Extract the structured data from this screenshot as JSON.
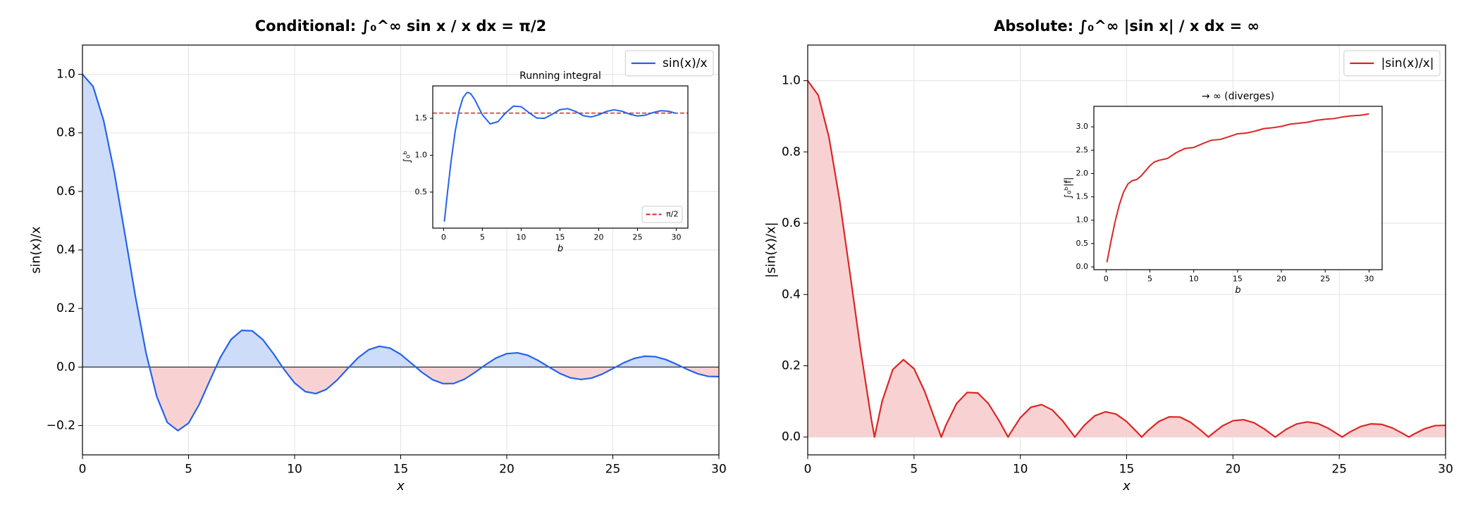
{
  "chart_data": [
    {
      "type": "line",
      "title": "Conditional: ∫₀^∞ sin x / x dx = π/2",
      "xlabel": "x",
      "ylabel": "sin(x)/x",
      "x": [
        0,
        0.5,
        1,
        1.5,
        2,
        2.5,
        3,
        3.5,
        4,
        4.5,
        5,
        5.5,
        6,
        6.5,
        7,
        7.5,
        8,
        8.5,
        9,
        9.5,
        10,
        10.5,
        11,
        11.5,
        12,
        12.5,
        13,
        13.5,
        14,
        14.5,
        15,
        15.5,
        16,
        16.5,
        17,
        17.5,
        18,
        18.5,
        19,
        19.5,
        20,
        20.5,
        21,
        21.5,
        22,
        22.5,
        23,
        23.5,
        24,
        24.5,
        25,
        25.5,
        26,
        26.5,
        27,
        27.5,
        28,
        28.5,
        29,
        29.5,
        30
      ],
      "series": [
        {
          "name": "sin(x)/x",
          "color": "#2563eb",
          "fill_color": "#cddcf9",
          "fill_color_negative": "#f8d2d2",
          "values": [
            1,
            0.9589,
            0.8415,
            0.665,
            0.4546,
            0.2394,
            0.047,
            -0.1002,
            -0.1892,
            -0.2172,
            -0.1918,
            -0.1283,
            -0.0466,
            0.0331,
            0.0939,
            0.1251,
            0.1237,
            0.0939,
            0.0458,
            -0.0079,
            -0.0544,
            -0.0838,
            -0.0909,
            -0.0761,
            -0.0447,
            -0.0053,
            0.0323,
            0.0595,
            0.0708,
            0.0645,
            0.0434,
            0.0131,
            -0.018,
            -0.0431,
            -0.0566,
            -0.0561,
            -0.0417,
            -0.0183,
            0.0079,
            0.0311,
            0.0457,
            0.0486,
            0.0398,
            0.0217,
            -0.0004,
            -0.0217,
            -0.0368,
            -0.0425,
            -0.0377,
            -0.0241,
            -0.0053,
            0.0141,
            0.0293,
            0.037,
            0.0354,
            0.0255,
            0.0097,
            -0.0078,
            -0.0229,
            -0.0319,
            -0.0329
          ]
        }
      ],
      "hlines": [
        {
          "value": 0,
          "color": "#000000"
        }
      ],
      "xlim": [
        0,
        30
      ],
      "ylim": [
        -0.3,
        1.1
      ],
      "xticks": [
        0,
        5,
        10,
        15,
        20,
        25,
        30
      ],
      "yticks": [
        {
          "value": -0.2,
          "label": "−0.2"
        },
        {
          "value": 0,
          "label": "0.0"
        },
        {
          "value": 0.2,
          "label": "0.2"
        },
        {
          "value": 0.4,
          "label": "0.4"
        },
        {
          "value": 0.6,
          "label": "0.6"
        },
        {
          "value": 0.8,
          "label": "0.8"
        },
        {
          "value": 1.0,
          "label": "1.0"
        }
      ],
      "grid": true,
      "legend": "upper right"
    },
    {
      "type": "line",
      "title": "Running integral",
      "xlabel": "b",
      "ylabel": "∫₀ᵇ",
      "x": [
        0.1,
        0.5,
        1,
        1.5,
        2,
        2.5,
        3,
        3.1416,
        3.5,
        4,
        4.5,
        5,
        6,
        7,
        8,
        9,
        10,
        11,
        12,
        13,
        14,
        15,
        16,
        17,
        18,
        19,
        20,
        21,
        22,
        23,
        24,
        25,
        26,
        27,
        28,
        29,
        30
      ],
      "series": [
        {
          "name": null,
          "color": "#2563eb",
          "values": [
            0.0999,
            0.4931,
            0.9461,
            1.3247,
            1.6054,
            1.7785,
            1.8487,
            1.8519,
            1.8331,
            1.7582,
            1.654,
            1.5499,
            1.4247,
            1.4546,
            1.5742,
            1.665,
            1.6583,
            1.5783,
            1.505,
            1.4994,
            1.5562,
            1.6182,
            1.6315,
            1.5949,
            1.5364,
            1.5183,
            1.5482,
            1.5946,
            1.6161,
            1.5965,
            1.5561,
            1.5315,
            1.5431,
            1.5786,
            1.6037,
            1.597,
            1.5668
          ]
        }
      ],
      "hlines": [
        {
          "value": 1.5708,
          "color": "#dc2626",
          "dashed": true,
          "label": "π/2"
        }
      ],
      "xlim": [
        -1.395,
        31.495
      ],
      "ylim": [
        0.012,
        1.94
      ],
      "xticks": [
        0,
        5,
        10,
        15,
        20,
        25,
        30
      ],
      "yticks": [
        {
          "value": 0.5,
          "label": "0.5"
        },
        {
          "value": 1.0,
          "label": "1.0"
        },
        {
          "value": 1.5,
          "label": "1.5"
        }
      ],
      "grid": false,
      "legend": "lower right"
    },
    {
      "type": "line",
      "title": "Absolute: ∫₀^∞ |sin x| / x dx = ∞",
      "xlabel": "x",
      "ylabel": "|sin(x)/x|",
      "x": [
        0,
        0.5,
        1,
        1.5,
        2,
        2.5,
        3,
        3.1416,
        3.5,
        4,
        4.5,
        5,
        5.5,
        6,
        6.2832,
        6.5,
        7,
        7.5,
        8,
        8.5,
        9,
        9.4248,
        9.5,
        10,
        10.5,
        11,
        11.5,
        12,
        12.5,
        12.5664,
        13,
        13.5,
        14,
        14.5,
        15,
        15.5,
        15.708,
        16,
        16.5,
        17,
        17.5,
        18,
        18.5,
        18.8496,
        19,
        19.5,
        20,
        20.5,
        21,
        21.5,
        21.9911,
        22,
        22.5,
        23,
        23.5,
        24,
        24.5,
        25,
        25.1327,
        25.5,
        26,
        26.5,
        27,
        27.5,
        28,
        28.2743,
        28.5,
        29,
        29.5,
        30
      ],
      "series": [
        {
          "name": "|sin(x)/x|",
          "color": "#dc2626",
          "fill_color": "#f8d2d2",
          "values": [
            1,
            0.9589,
            0.8415,
            0.665,
            0.4546,
            0.2394,
            0.047,
            0,
            0.1002,
            0.1892,
            0.2172,
            0.1918,
            0.1283,
            0.0466,
            0,
            0.0331,
            0.0939,
            0.1251,
            0.1237,
            0.0939,
            0.0458,
            0,
            0.0079,
            0.0544,
            0.0838,
            0.0909,
            0.0761,
            0.0447,
            0.0053,
            0,
            0.0323,
            0.0595,
            0.0708,
            0.0645,
            0.0434,
            0.0131,
            0,
            0.018,
            0.0431,
            0.0566,
            0.0561,
            0.0417,
            0.0183,
            0,
            0.0079,
            0.0311,
            0.0457,
            0.0486,
            0.0398,
            0.0217,
            0,
            0.0004,
            0.0217,
            0.0368,
            0.0425,
            0.0377,
            0.0241,
            0.0053,
            0,
            0.0141,
            0.0293,
            0.037,
            0.0354,
            0.0255,
            0.0097,
            0,
            0.0078,
            0.0229,
            0.0319,
            0.0329
          ]
        }
      ],
      "xlim": [
        0,
        30
      ],
      "ylim": [
        -0.05,
        1.1
      ],
      "xticks": [
        0,
        5,
        10,
        15,
        20,
        25,
        30
      ],
      "yticks": [
        {
          "value": 0,
          "label": "0.0"
        },
        {
          "value": 0.2,
          "label": "0.2"
        },
        {
          "value": 0.4,
          "label": "0.4"
        },
        {
          "value": 0.6,
          "label": "0.6"
        },
        {
          "value": 0.8,
          "label": "0.8"
        },
        {
          "value": 1.0,
          "label": "1.0"
        }
      ],
      "grid": true,
      "legend": "upper right"
    },
    {
      "type": "line",
      "title": "→ ∞ (diverges)",
      "xlabel": "b",
      "ylabel": "∫₀ᵇ|f|",
      "x": [
        0.1,
        0.5,
        1,
        1.5,
        2,
        2.5,
        3,
        3.5,
        4,
        4.5,
        5,
        5.5,
        6,
        7,
        8,
        9,
        10,
        11,
        12,
        13,
        14,
        15,
        16,
        17,
        18,
        19,
        20,
        21,
        22,
        23,
        24,
        25,
        26,
        27,
        28,
        29,
        30
      ],
      "series": [
        {
          "name": null,
          "color": "#dc2626",
          "values": [
            0.0999,
            0.4931,
            0.9461,
            1.3247,
            1.6054,
            1.7785,
            1.8487,
            1.871,
            1.949,
            2.059,
            2.167,
            2.247,
            2.281,
            2.323,
            2.446,
            2.536,
            2.558,
            2.639,
            2.713,
            2.73,
            2.788,
            2.851,
            2.867,
            2.908,
            2.963,
            2.981,
            3.01,
            3.058,
            3.078,
            3.099,
            3.14,
            3.163,
            3.177,
            3.213,
            3.237,
            3.247,
            3.278
          ]
        }
      ],
      "xlim": [
        -1.395,
        31.495
      ],
      "ylim": [
        -0.06,
        3.44
      ],
      "xticks": [
        0,
        5,
        10,
        15,
        20,
        25,
        30
      ],
      "yticks": [
        {
          "value": 0,
          "label": "0.0"
        },
        {
          "value": 0.5,
          "label": "0.5"
        },
        {
          "value": 1.0,
          "label": "1.0"
        },
        {
          "value": 1.5,
          "label": "1.5"
        },
        {
          "value": 2.0,
          "label": "2.0"
        },
        {
          "value": 2.5,
          "label": "2.5"
        },
        {
          "value": 3.0,
          "label": "3.0"
        }
      ],
      "grid": false
    }
  ]
}
